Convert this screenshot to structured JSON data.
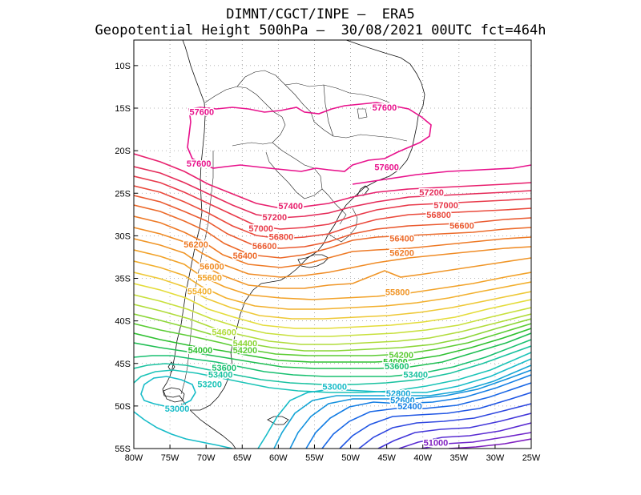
{
  "header": {
    "line1": "DIMNT/CGCT/INPE —  ERA5",
    "line2": "Geopotential Height 500hPa —  30/08/2021 00UTC fct=464h"
  },
  "axes": {
    "lon_min": -80,
    "lon_max": -25,
    "lat_min": -55,
    "lat_max": -7,
    "x_ticks": [
      {
        "value": -80,
        "label": "80W"
      },
      {
        "value": -75,
        "label": "75W"
      },
      {
        "value": -70,
        "label": "70W"
      },
      {
        "value": -65,
        "label": "65W"
      },
      {
        "value": -60,
        "label": "60W"
      },
      {
        "value": -55,
        "label": "55W"
      },
      {
        "value": -50,
        "label": "50W"
      },
      {
        "value": -45,
        "label": "45W"
      },
      {
        "value": -40,
        "label": "40W"
      },
      {
        "value": -35,
        "label": "35W"
      },
      {
        "value": -30,
        "label": "30W"
      },
      {
        "value": -25,
        "label": "25W"
      }
    ],
    "y_ticks": [
      {
        "value": -10,
        "label": "10S"
      },
      {
        "value": -15,
        "label": "15S"
      },
      {
        "value": -20,
        "label": "20S"
      },
      {
        "value": -25,
        "label": "25S"
      },
      {
        "value": -30,
        "label": "30S"
      },
      {
        "value": -35,
        "label": "35S"
      },
      {
        "value": -40,
        "label": "40S"
      },
      {
        "value": -45,
        "label": "45S"
      },
      {
        "value": -50,
        "label": "50S"
      },
      {
        "value": -55,
        "label": "55S"
      }
    ]
  },
  "contour_labels": [
    {
      "text": "57600",
      "lon": -70.6,
      "lat": -15.4,
      "color": "#e8128c"
    },
    {
      "text": "57600",
      "lon": -45.3,
      "lat": -14.9,
      "color": "#e8128c"
    },
    {
      "text": "57600",
      "lon": -71.0,
      "lat": -21.5,
      "color": "#e8128c"
    },
    {
      "text": "57600",
      "lon": -45.0,
      "lat": -21.9,
      "color": "#e8128c"
    },
    {
      "text": "57400",
      "lon": -58.3,
      "lat": -26.5,
      "color": "#e8206e"
    },
    {
      "text": "57200",
      "lon": -60.5,
      "lat": -27.8,
      "color": "#e52c5a"
    },
    {
      "text": "57200",
      "lon": -38.8,
      "lat": -24.9,
      "color": "#e52c5a"
    },
    {
      "text": "57000",
      "lon": -36.8,
      "lat": -26.4,
      "color": "#e83a4a"
    },
    {
      "text": "57000",
      "lon": -62.4,
      "lat": -29.1,
      "color": "#e83a4a"
    },
    {
      "text": "56800",
      "lon": -37.8,
      "lat": -27.5,
      "color": "#ea4a3c"
    },
    {
      "text": "56800",
      "lon": -59.6,
      "lat": -30.1,
      "color": "#ea4a3c"
    },
    {
      "text": "56600",
      "lon": -34.6,
      "lat": -28.8,
      "color": "#ea5a30"
    },
    {
      "text": "56600",
      "lon": -61.9,
      "lat": -31.2,
      "color": "#ea5a30"
    },
    {
      "text": "56400",
      "lon": -64.6,
      "lat": -32.3,
      "color": "#ec6a2a"
    },
    {
      "text": "56400",
      "lon": -42.9,
      "lat": -30.3,
      "color": "#ec6a2a"
    },
    {
      "text": "56200",
      "lon": -71.4,
      "lat": -31.0,
      "color": "#ee7a26"
    },
    {
      "text": "56200",
      "lon": -42.9,
      "lat": -32.0,
      "color": "#ee7a26"
    },
    {
      "text": "56000",
      "lon": -69.2,
      "lat": -33.6,
      "color": "#f08c26"
    },
    {
      "text": "55600",
      "lon": -69.5,
      "lat": -34.9,
      "color": "#f2a228"
    },
    {
      "text": "55400",
      "lon": -70.9,
      "lat": -36.5,
      "color": "#f2b02e"
    },
    {
      "text": "55800",
      "lon": -43.5,
      "lat": -36.6,
      "color": "#f09628"
    },
    {
      "text": "54600",
      "lon": -67.5,
      "lat": -41.3,
      "color": "#b0dc3a"
    },
    {
      "text": "54400",
      "lon": -64.6,
      "lat": -42.6,
      "color": "#8cd638"
    },
    {
      "text": "54200",
      "lon": -64.6,
      "lat": -43.4,
      "color": "#5ccc34"
    },
    {
      "text": "54000",
      "lon": -70.8,
      "lat": -43.4,
      "color": "#2ec030"
    },
    {
      "text": "54200",
      "lon": -43.0,
      "lat": -44.0,
      "color": "#5ccc34"
    },
    {
      "text": "54000",
      "lon": -43.8,
      "lat": -44.8,
      "color": "#2ec030"
    },
    {
      "text": "53600",
      "lon": -43.6,
      "lat": -45.3,
      "color": "#18c070"
    },
    {
      "text": "53400",
      "lon": -41.0,
      "lat": -46.3,
      "color": "#1ac2a0"
    },
    {
      "text": "53600",
      "lon": -67.5,
      "lat": -45.5,
      "color": "#18c070"
    },
    {
      "text": "53400",
      "lon": -68.0,
      "lat": -46.3,
      "color": "#1ac2a0"
    },
    {
      "text": "53200",
      "lon": -69.5,
      "lat": -47.4,
      "color": "#1cc4b8"
    },
    {
      "text": "53000",
      "lon": -52.2,
      "lat": -47.7,
      "color": "#18bcc8"
    },
    {
      "text": "53000",
      "lon": -74.0,
      "lat": -50.3,
      "color": "#18bcc8"
    },
    {
      "text": "52800",
      "lon": -43.4,
      "lat": -48.5,
      "color": "#16a6d6"
    },
    {
      "text": "52600",
      "lon": -42.8,
      "lat": -49.3,
      "color": "#1492de"
    },
    {
      "text": "52400",
      "lon": -41.8,
      "lat": -50.0,
      "color": "#147ee4"
    },
    {
      "text": "51000",
      "lon": -38.2,
      "lat": -54.3,
      "color": "#8020c0"
    }
  ]
}
